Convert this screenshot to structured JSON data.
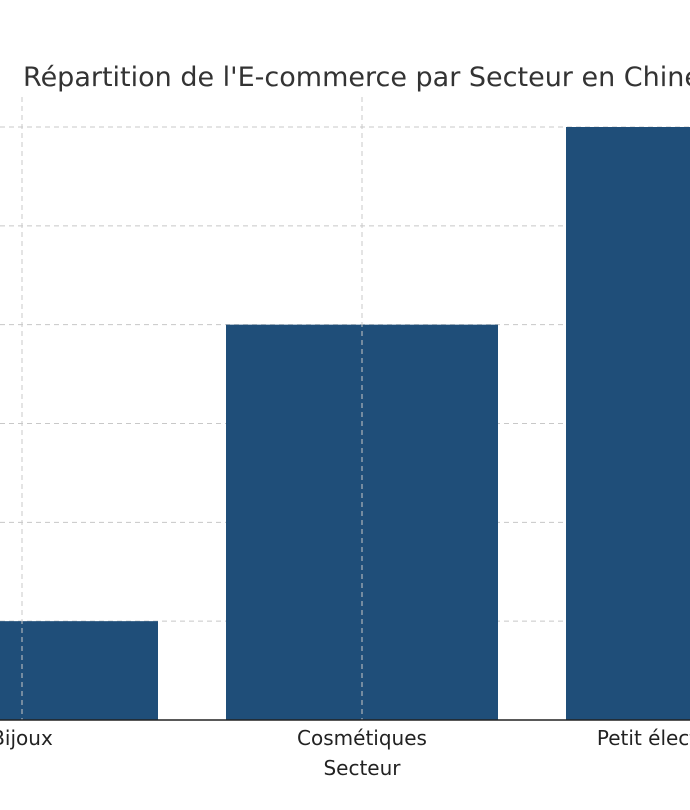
{
  "chart_data": {
    "type": "bar",
    "title": "Répartition de l'E-commerce par Secteur en Chine",
    "xlabel": "Secteur",
    "ylabel": "",
    "categories": [
      "Bijoux",
      "Cosmétiques",
      "Petit électroménager"
    ],
    "values": [
      5,
      20,
      30
    ],
    "ylim": [
      0,
      30
    ],
    "grid": true,
    "bar_color": "#1f4e79"
  }
}
